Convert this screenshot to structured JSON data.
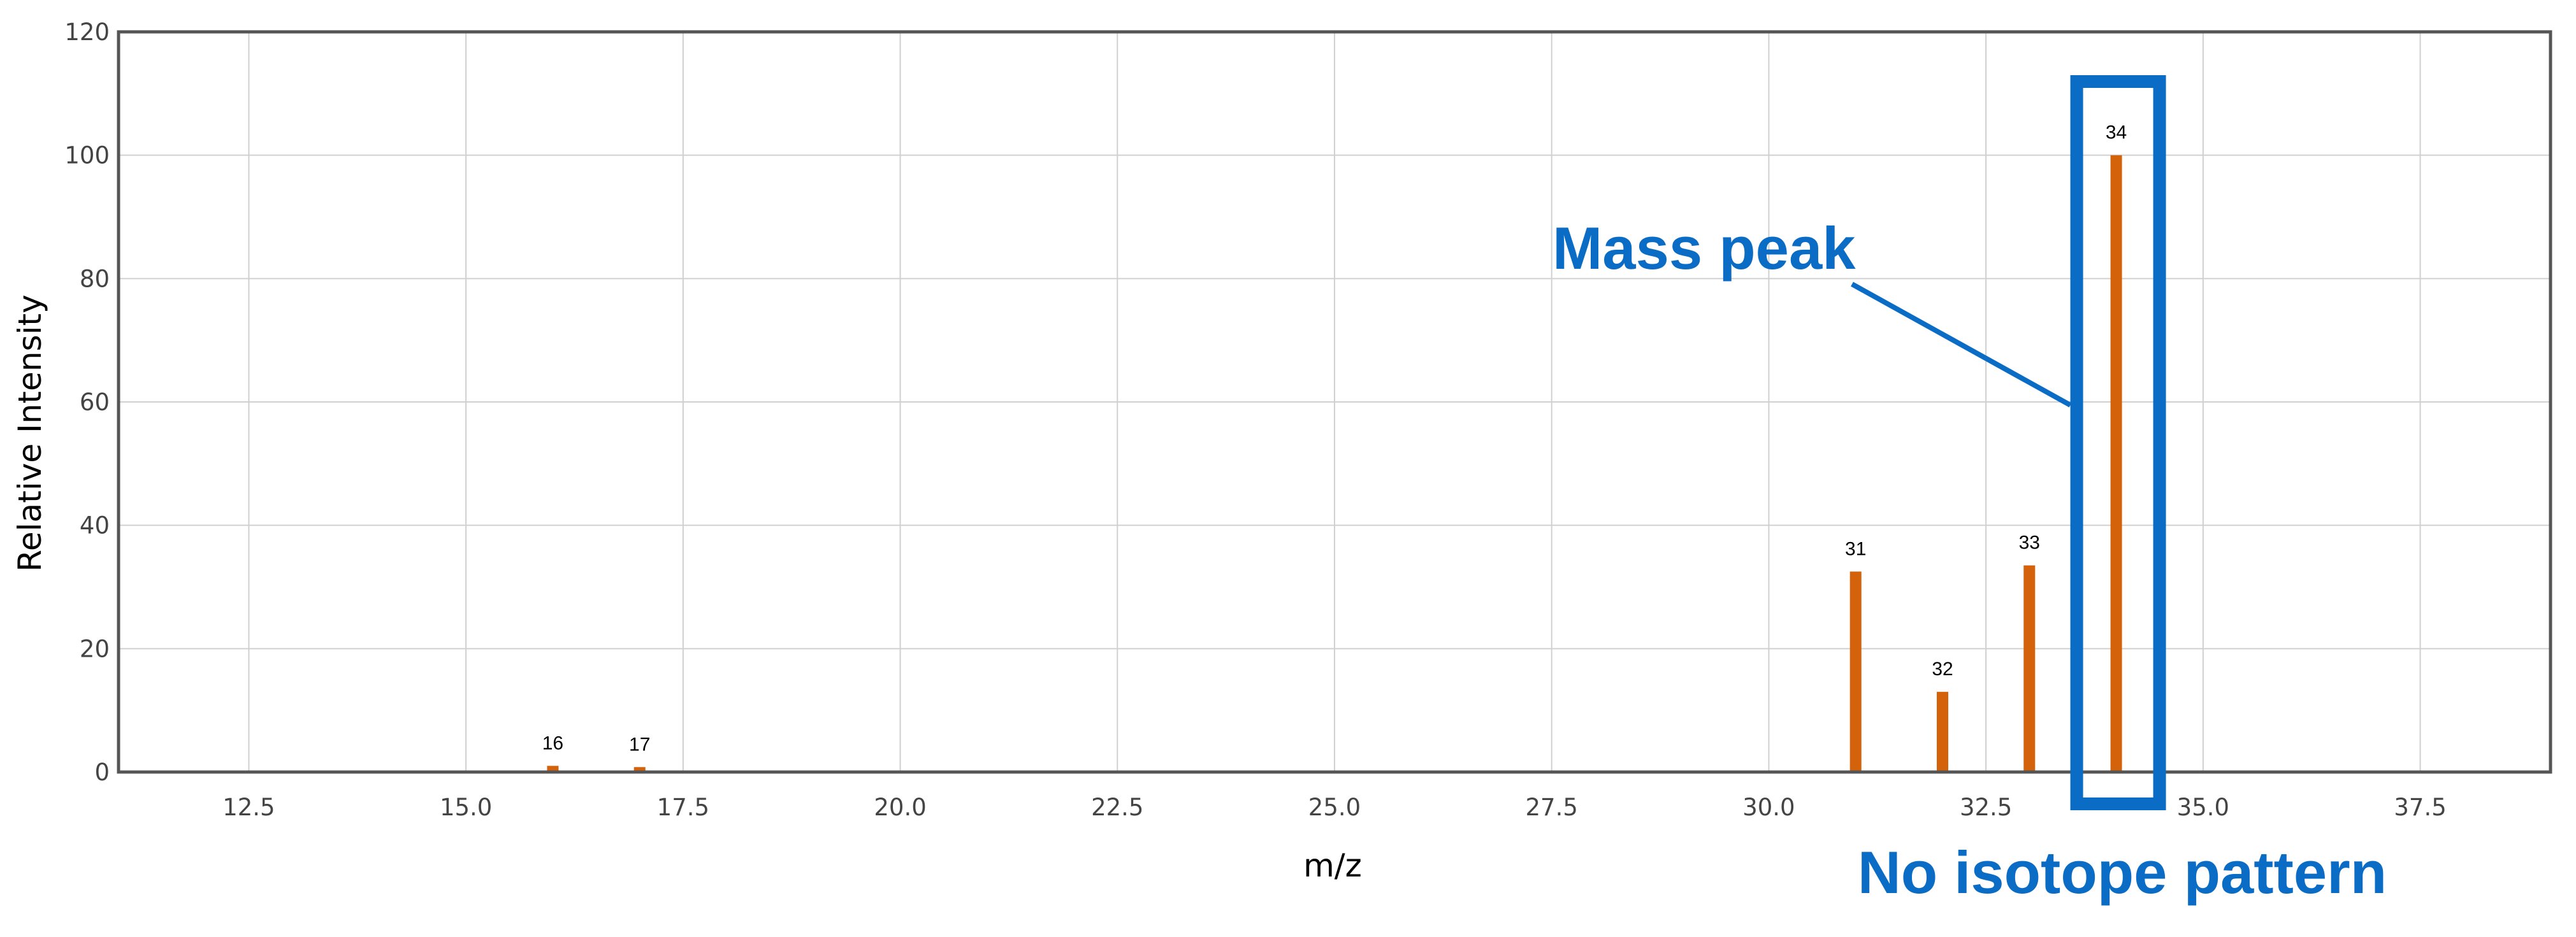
{
  "chart_data": {
    "type": "bar",
    "title": "",
    "xlabel": "m/z",
    "ylabel": "Relative Intensity",
    "xlim": [
      11,
      39
    ],
    "ylim": [
      0,
      120
    ],
    "xticks": [
      12.5,
      15.0,
      17.5,
      20.0,
      22.5,
      25.0,
      27.5,
      30.0,
      32.5,
      35.0,
      37.5
    ],
    "xtick_labels": [
      "12.5",
      "15.0",
      "17.5",
      "20.0",
      "22.5",
      "25.0",
      "27.5",
      "30.0",
      "32.5",
      "35.0",
      "37.5"
    ],
    "yticks": [
      0,
      20,
      40,
      60,
      80,
      100,
      120
    ],
    "ytick_labels": [
      "0",
      "20",
      "40",
      "60",
      "80",
      "100",
      "120"
    ],
    "grid": true,
    "bar_color": "#d4620a",
    "bars": [
      {
        "x": 16,
        "value": 1,
        "label": "16"
      },
      {
        "x": 17,
        "value": 0.8,
        "label": "17"
      },
      {
        "x": 31,
        "value": 32.5,
        "label": "31"
      },
      {
        "x": 32,
        "value": 13,
        "label": "32"
      },
      {
        "x": 33,
        "value": 33.5,
        "label": "33"
      },
      {
        "x": 34,
        "value": 100,
        "label": "34"
      }
    ],
    "annotations": {
      "color": "#0a6cc4",
      "mass_peak_text": "Mass peak",
      "isotope_text": "No isotope pattern",
      "highlight_x": 34
    }
  }
}
